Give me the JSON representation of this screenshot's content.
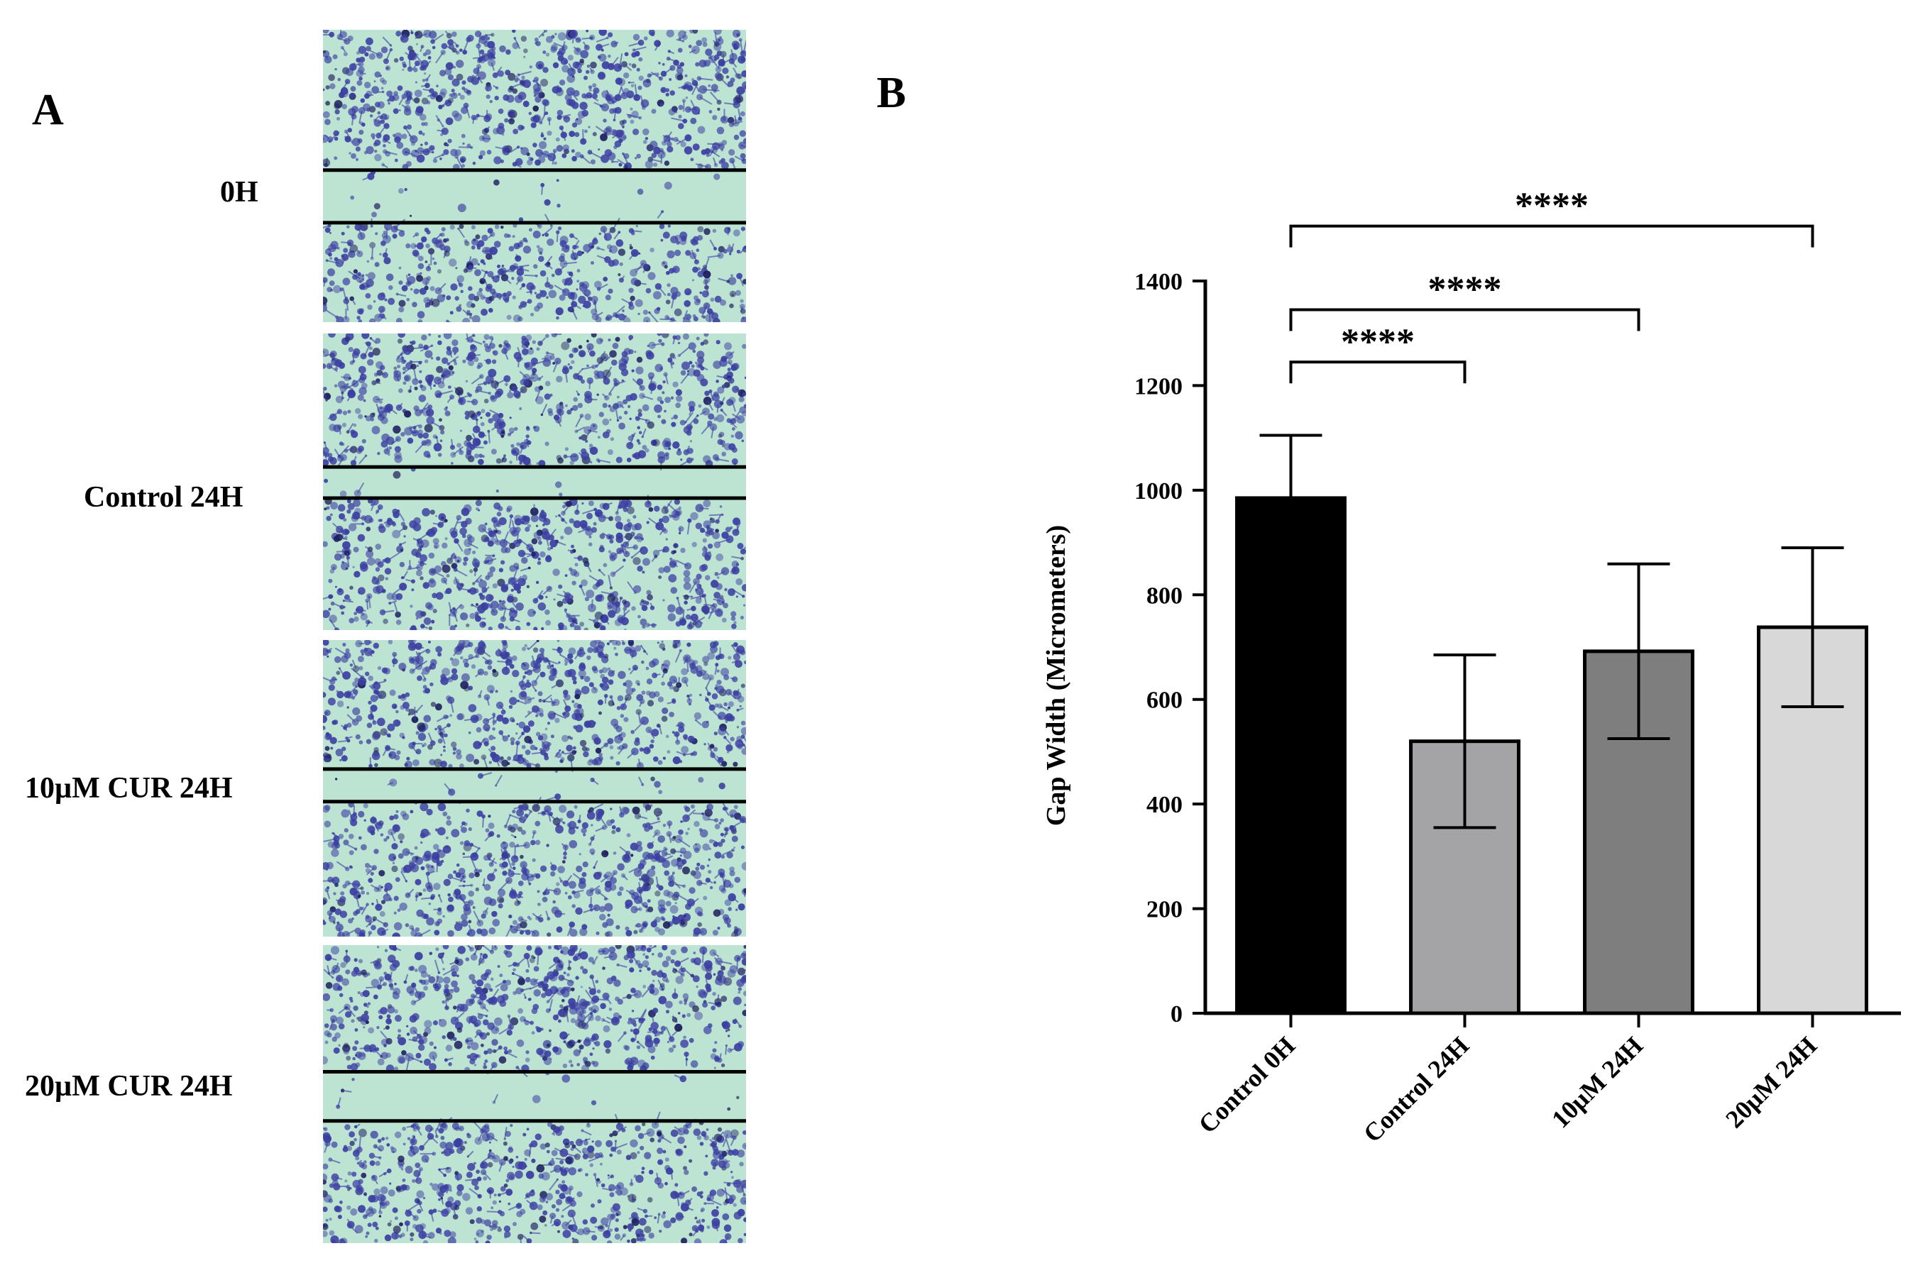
{
  "panel_a": {
    "letter": "A",
    "rows": [
      {
        "label": "0H",
        "gap_fraction": [
          0.48,
          0.66
        ]
      },
      {
        "label": "Control 24H",
        "gap_fraction": [
          0.45,
          0.555
        ]
      },
      {
        "label": "10µM CUR 24H",
        "gap_fraction": [
          0.435,
          0.545
        ]
      },
      {
        "label": "20µM CUR 24H",
        "gap_fraction": [
          0.425,
          0.59
        ]
      }
    ],
    "colors": {
      "background": "#bde3d2",
      "cells": "#3c3fa2",
      "dark_cells": "#1e1f5e",
      "lines": "#000000"
    }
  },
  "panel_b": {
    "letter": "B"
  },
  "chart_data": {
    "type": "bar",
    "title": "",
    "xlabel": "",
    "ylabel": "Gap Width (Micrometers)",
    "ylim": [
      0,
      1400
    ],
    "yticks": [
      0,
      200,
      400,
      600,
      800,
      1000,
      1200,
      1400
    ],
    "categories": [
      "Control 0H",
      "Control 24H",
      "10µM 24H",
      "20µM 24H"
    ],
    "values": [
      985,
      520,
      692,
      738
    ],
    "error": [
      120,
      165,
      167,
      152
    ],
    "bar_colors": [
      "#000000",
      "#a4a4a6",
      "#7e7e7e",
      "#d8d8d8"
    ],
    "significance": [
      {
        "from": 0,
        "to": 1,
        "label": "****",
        "level": 1245
      },
      {
        "from": 0,
        "to": 2,
        "label": "****",
        "level": 1345
      },
      {
        "from": 0,
        "to": 3,
        "label": "****",
        "level": 1505
      }
    ]
  }
}
